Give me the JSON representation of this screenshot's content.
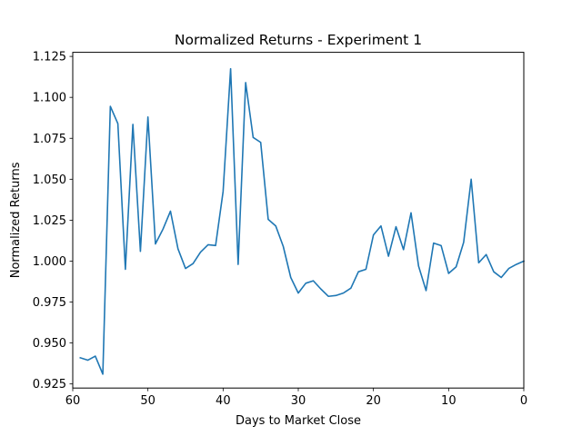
{
  "chart_data": {
    "type": "line",
    "title": "Normalized Returns - Experiment 1",
    "xlabel": "Days to Market Close",
    "ylabel": "Normalized Returns",
    "x_inverted": true,
    "xlim": [
      60,
      0
    ],
    "ylim": [
      0.9225,
      1.1275
    ],
    "xticks": [
      {
        "value": 60,
        "label": "60"
      },
      {
        "value": 50,
        "label": "50"
      },
      {
        "value": 40,
        "label": "40"
      },
      {
        "value": 30,
        "label": "30"
      },
      {
        "value": 20,
        "label": "20"
      },
      {
        "value": 10,
        "label": "10"
      },
      {
        "value": 0,
        "label": "0"
      }
    ],
    "yticks": [
      {
        "value": 0.925,
        "label": "0.925"
      },
      {
        "value": 0.95,
        "label": "0.950"
      },
      {
        "value": 0.975,
        "label": "0.975"
      },
      {
        "value": 1.0,
        "label": "1.000"
      },
      {
        "value": 1.025,
        "label": "1.025"
      },
      {
        "value": 1.05,
        "label": "1.050"
      },
      {
        "value": 1.075,
        "label": "1.075"
      },
      {
        "value": 1.1,
        "label": "1.100"
      },
      {
        "value": 1.125,
        "label": "1.125"
      }
    ],
    "grid": false,
    "legend": "none",
    "series": [
      {
        "color": "#1f77b4",
        "x": [
          59,
          58,
          57,
          56,
          55,
          54,
          53,
          52,
          51,
          50,
          49,
          48,
          47,
          46,
          45,
          44,
          43,
          42,
          41,
          40,
          39,
          38,
          37,
          36,
          35,
          34,
          33,
          32,
          31,
          30,
          29,
          28,
          27,
          26,
          25,
          24,
          23,
          22,
          21,
          20,
          19,
          18,
          17,
          16,
          15,
          14,
          13,
          12,
          11,
          10,
          9,
          8,
          7,
          6,
          5,
          4,
          3,
          2,
          1,
          0
        ],
        "y": [
          0.941,
          0.9395,
          0.942,
          0.931,
          1.0945,
          1.084,
          0.995,
          1.0835,
          1.006,
          1.088,
          1.0105,
          1.0195,
          1.0305,
          1.0075,
          0.9955,
          0.9985,
          1.0055,
          1.01,
          1.0095,
          1.0425,
          1.1175,
          0.998,
          1.109,
          1.0755,
          1.0725,
          1.0255,
          1.0215,
          1.009,
          0.99,
          0.9805,
          0.9865,
          0.988,
          0.983,
          0.9785,
          0.979,
          0.9805,
          0.9835,
          0.9935,
          0.995,
          1.016,
          1.0215,
          1.003,
          1.021,
          1.007,
          1.0295,
          0.997,
          0.982,
          1.011,
          1.0095,
          0.9925,
          0.9965,
          1.0115,
          1.05,
          0.999,
          1.004,
          0.9935,
          0.99,
          0.9955,
          0.998,
          1.0
        ]
      }
    ]
  }
}
